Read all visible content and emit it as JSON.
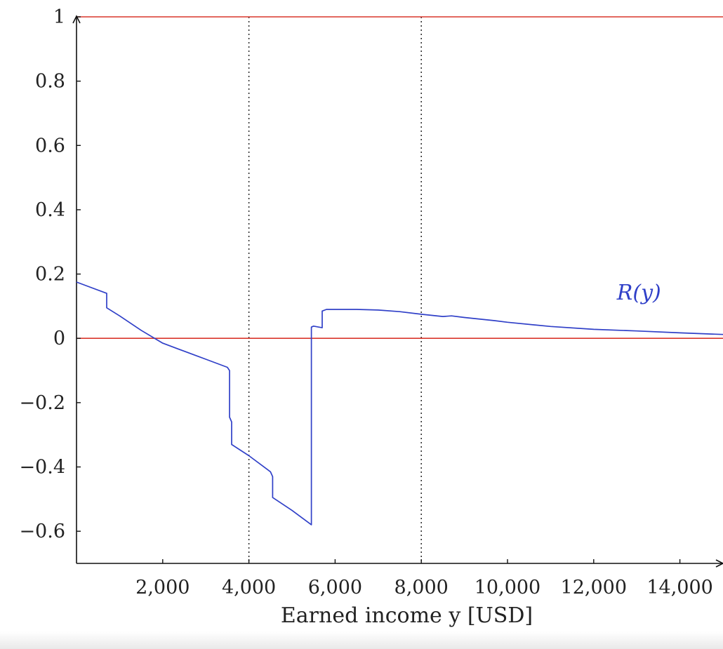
{
  "chart_data": {
    "type": "line",
    "xlabel": "Earned income y [USD]",
    "ylabel": "",
    "xlim": [
      0,
      15000
    ],
    "ylim": [
      -0.7,
      1
    ],
    "x_ticks": [
      2000,
      4000,
      6000,
      8000,
      10000,
      12000,
      14000
    ],
    "x_tick_labels": [
      "2,000",
      "4,000",
      "6,000",
      "8,000",
      "10,000",
      "12,000",
      "14,000"
    ],
    "y_ticks": [
      1,
      0.8,
      0.6,
      0.4,
      0.2,
      0,
      -0.2,
      -0.4,
      -0.6
    ],
    "y_tick_labels": [
      "1",
      "0.8",
      "0.6",
      "0.4",
      "0.2",
      "0",
      "−0.2",
      "−0.4",
      "−0.6"
    ],
    "reference_lines": {
      "horizontal": [
        0,
        1
      ],
      "vertical": [
        4000,
        8000
      ],
      "horizontal_color": "#d9362b",
      "vertical_style": "dotted"
    },
    "series": [
      {
        "name": "R(y)",
        "color": "#3040c8",
        "x": [
          0,
          700,
          700,
          1000,
          1500,
          2000,
          2500,
          3000,
          3500,
          3550,
          3550,
          3600,
          3600,
          4000,
          4500,
          4550,
          4550,
          5000,
          5400,
          5450,
          5450,
          5500,
          5700,
          5700,
          5800,
          6000,
          6500,
          7000,
          7500,
          8000,
          8500,
          8700,
          9000,
          9700,
          10000,
          11000,
          12000,
          13000,
          14000,
          15000
        ],
        "y": [
          0.175,
          0.14,
          0.095,
          0.07,
          0.025,
          -0.015,
          -0.04,
          -0.065,
          -0.09,
          -0.1,
          -0.245,
          -0.26,
          -0.33,
          -0.365,
          -0.415,
          -0.43,
          -0.495,
          -0.535,
          -0.575,
          -0.58,
          0.035,
          0.038,
          0.033,
          0.085,
          0.09,
          0.09,
          0.09,
          0.088,
          0.083,
          0.075,
          0.068,
          0.07,
          0.065,
          0.055,
          0.05,
          0.037,
          0.028,
          0.023,
          0.017,
          0.012
        ]
      }
    ]
  }
}
